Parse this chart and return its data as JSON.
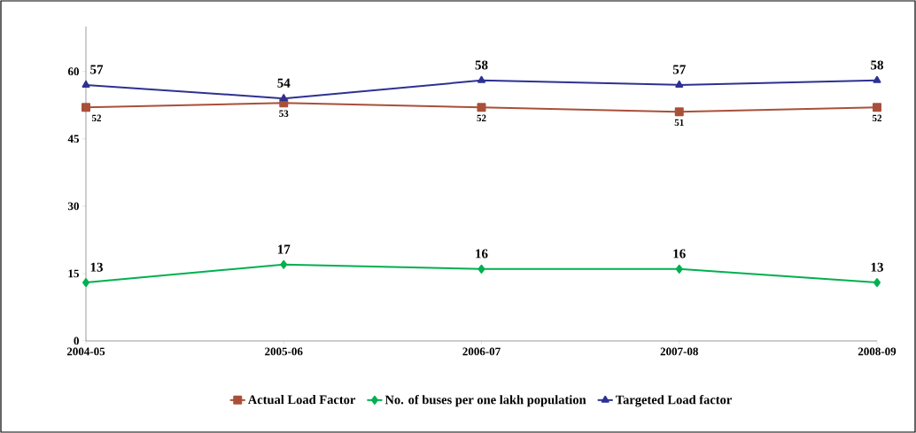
{
  "chart_data": {
    "type": "line",
    "categories": [
      "2004-05",
      "2005-06",
      "2006-07",
      "2007-08",
      "2008-09"
    ],
    "series": [
      {
        "name": "Actual Load Factor",
        "color": "#a9503a",
        "marker": "square",
        "values": [
          52,
          53,
          52,
          51,
          52
        ]
      },
      {
        "name": "No. of buses per one lakh population",
        "color": "#00b050",
        "marker": "diamond",
        "values": [
          13,
          17,
          16,
          16,
          13
        ]
      },
      {
        "name": "Targeted Load factor",
        "color": "#2e3192",
        "marker": "triangle",
        "values": [
          57,
          54,
          58,
          57,
          58
        ]
      }
    ],
    "ylim": [
      0,
      70
    ],
    "yticks": [
      0,
      15,
      30,
      45,
      60
    ],
    "grid": false,
    "legend": "bottom",
    "data_labels": true,
    "line_style": "solid"
  }
}
